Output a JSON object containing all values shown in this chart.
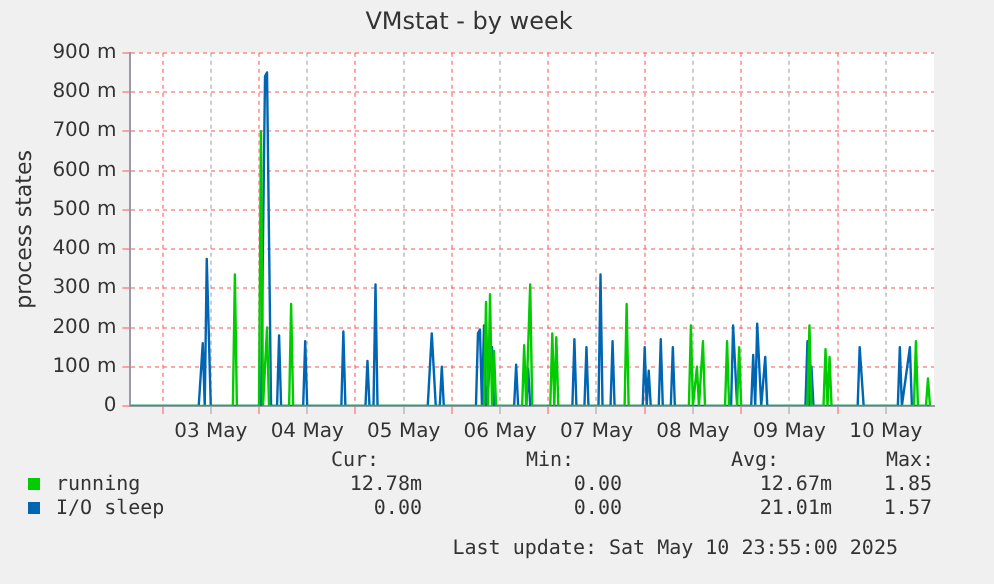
{
  "chart_data": {
    "type": "line",
    "title": "VMstat - by week",
    "ylabel": "process states",
    "xlim": [
      "2025-05-02T16:00",
      "2025-05-11T00:00"
    ],
    "xticks": [
      {
        "value": "2025-05-03T00:00",
        "label": null
      },
      {
        "value": "2025-05-03T12:00",
        "label": "03 May"
      },
      {
        "value": "2025-05-04T00:00",
        "label": null
      },
      {
        "value": "2025-05-04T12:00",
        "label": "04 May"
      },
      {
        "value": "2025-05-05T00:00",
        "label": null
      },
      {
        "value": "2025-05-05T12:00",
        "label": "05 May"
      },
      {
        "value": "2025-05-06T00:00",
        "label": null
      },
      {
        "value": "2025-05-06T12:00",
        "label": "06 May"
      },
      {
        "value": "2025-05-07T00:00",
        "label": null
      },
      {
        "value": "2025-05-07T12:00",
        "label": "07 May"
      },
      {
        "value": "2025-05-08T00:00",
        "label": null
      },
      {
        "value": "2025-05-08T12:00",
        "label": "08 May"
      },
      {
        "value": "2025-05-09T00:00",
        "label": null
      },
      {
        "value": "2025-05-09T12:00",
        "label": "09 May"
      },
      {
        "value": "2025-05-10T00:00",
        "label": null
      },
      {
        "value": "2025-05-10T12:00",
        "label": "10 May"
      }
    ],
    "ylim": [
      0,
      900
    ],
    "yticks": [
      0,
      {
        "value": 100,
        "label": "100 m"
      },
      {
        "value": 200,
        "label": "200 m"
      },
      {
        "value": 300,
        "label": "300 m"
      },
      {
        "value": 400,
        "label": "400 m"
      },
      {
        "value": 500,
        "label": "500 m"
      },
      {
        "value": 600,
        "label": "600 m"
      },
      {
        "value": 700,
        "label": "700 m"
      },
      {
        "value": 800,
        "label": "800 m"
      },
      {
        "value": 900,
        "label": "900 m"
      }
    ],
    "grid": true,
    "legend": "bottom",
    "marker": "none",
    "line_style": "solid",
    "series": [
      {
        "name": "running",
        "color": "#00cc00",
        "x": [
          "2025-05-02T16:00",
          "2025-05-03T17:30",
          "2025-05-03T18:00",
          "2025-05-03T18:30",
          "2025-05-04T00:00",
          "2025-05-04T00:30",
          "2025-05-04T01:00",
          "2025-05-04T02:00",
          "2025-05-04T02:30",
          "2025-05-04T07:30",
          "2025-05-04T08:00",
          "2025-05-04T08:30",
          "2025-05-06T08:00",
          "2025-05-06T08:30",
          "2025-05-06T09:00",
          "2025-05-06T09:30",
          "2025-05-06T10:00",
          "2025-05-06T10:30",
          "2025-05-06T11:00",
          "2025-05-06T17:30",
          "2025-05-06T18:00",
          "2025-05-06T18:30",
          "2025-05-06T19:30",
          "2025-05-06T20:00",
          "2025-05-07T00:30",
          "2025-05-07T01:00",
          "2025-05-07T01:30",
          "2025-05-07T02:00",
          "2025-05-07T02:30",
          "2025-05-07T19:00",
          "2025-05-07T19:30",
          "2025-05-07T20:00",
          "2025-05-08T11:00",
          "2025-05-08T11:30",
          "2025-05-08T12:00",
          "2025-05-08T13:00",
          "2025-05-08T13:30",
          "2025-05-08T14:30",
          "2025-05-08T15:00",
          "2025-05-08T20:00",
          "2025-05-08T20:30",
          "2025-05-08T21:00",
          "2025-05-08T23:00",
          "2025-05-08T23:30",
          "2025-05-09T00:00",
          "2025-05-09T16:30",
          "2025-05-09T17:00",
          "2025-05-09T17:30",
          "2025-05-09T20:30",
          "2025-05-09T21:00",
          "2025-05-09T21:30",
          "2025-05-09T22:00",
          "2025-05-09T22:30",
          "2025-05-10T19:00",
          "2025-05-10T19:30",
          "2025-05-10T20:00",
          "2025-05-10T22:00",
          "2025-05-10T22:30",
          "2025-05-10T23:00"
        ],
        "values": [
          0,
          0,
          335,
          0,
          0,
          700,
          0,
          200,
          0,
          0,
          260,
          0,
          0,
          265,
          0,
          285,
          0,
          140,
          0,
          0,
          155,
          0,
          310,
          0,
          0,
          185,
          0,
          175,
          0,
          0,
          260,
          0,
          0,
          205,
          0,
          100,
          0,
          165,
          0,
          0,
          165,
          0,
          0,
          150,
          0,
          0,
          205,
          0,
          0,
          145,
          0,
          125,
          0,
          0,
          165,
          0,
          0,
          70,
          0
        ]
      },
      {
        "name": "I/O sleep",
        "color": "#0066b3",
        "x": [
          "2025-05-02T16:00",
          "2025-05-03T09:00",
          "2025-05-03T10:00",
          "2025-05-03T10:30",
          "2025-05-03T11:00",
          "2025-05-03T12:00",
          "2025-05-04T00:30",
          "2025-05-04T01:30",
          "2025-05-04T02:00",
          "2025-05-04T03:00",
          "2025-05-04T04:30",
          "2025-05-04T05:00",
          "2025-05-04T05:30",
          "2025-05-04T11:00",
          "2025-05-04T11:30",
          "2025-05-04T12:00",
          "2025-05-04T20:30",
          "2025-05-04T21:00",
          "2025-05-04T21:30",
          "2025-05-05T02:30",
          "2025-05-05T03:00",
          "2025-05-05T03:30",
          "2025-05-05T04:30",
          "2025-05-05T05:00",
          "2025-05-05T05:30",
          "2025-05-05T18:00",
          "2025-05-05T19:00",
          "2025-05-05T20:00",
          "2025-05-05T21:00",
          "2025-05-05T21:30",
          "2025-05-05T22:00",
          "2025-05-06T06:00",
          "2025-05-06T06:30",
          "2025-05-06T07:00",
          "2025-05-06T07:30",
          "2025-05-06T08:00",
          "2025-05-06T08:30",
          "2025-05-06T10:00",
          "2025-05-06T10:30",
          "2025-05-06T15:30",
          "2025-05-06T16:00",
          "2025-05-06T16:30",
          "2025-05-06T18:30",
          "2025-05-06T19:00",
          "2025-05-06T19:30",
          "2025-05-07T06:00",
          "2025-05-07T06:30",
          "2025-05-07T07:00",
          "2025-05-07T09:00",
          "2025-05-07T09:30",
          "2025-05-07T10:00",
          "2025-05-07T12:30",
          "2025-05-07T13:00",
          "2025-05-07T13:30",
          "2025-05-07T15:30",
          "2025-05-07T16:00",
          "2025-05-07T16:30",
          "2025-05-07T23:30",
          "2025-05-08T00:00",
          "2025-05-08T00:30",
          "2025-05-08T01:00",
          "2025-05-08T01:30",
          "2025-05-08T03:30",
          "2025-05-08T04:00",
          "2025-05-08T04:30",
          "2025-05-08T06:30",
          "2025-05-08T07:00",
          "2025-05-08T07:30",
          "2025-05-08T21:30",
          "2025-05-08T22:00",
          "2025-05-08T23:00",
          "2025-05-09T02:30",
          "2025-05-09T03:00",
          "2025-05-09T03:30",
          "2025-05-09T04:00",
          "2025-05-09T05:00",
          "2025-05-09T06:00",
          "2025-05-09T06:30",
          "2025-05-09T16:00",
          "2025-05-09T16:30",
          "2025-05-09T17:00",
          "2025-05-09T17:30",
          "2025-05-09T18:00",
          "2025-05-10T05:00",
          "2025-05-10T05:30",
          "2025-05-10T06:30",
          "2025-05-10T15:00",
          "2025-05-10T15:30",
          "2025-05-10T16:00",
          "2025-05-10T18:00",
          "2025-05-10T18:30",
          "2025-05-10T23:00"
        ],
        "values": [
          0,
          0,
          160,
          0,
          375,
          0,
          0,
          840,
          850,
          0,
          0,
          180,
          0,
          0,
          165,
          0,
          0,
          190,
          0,
          0,
          115,
          0,
          0,
          310,
          0,
          0,
          185,
          0,
          0,
          100,
          0,
          0,
          185,
          195,
          0,
          205,
          0,
          150,
          0,
          0,
          105,
          0,
          0,
          95,
          0,
          0,
          170,
          0,
          0,
          150,
          0,
          0,
          335,
          0,
          0,
          165,
          0,
          0,
          150,
          0,
          90,
          0,
          0,
          170,
          0,
          0,
          150,
          0,
          0,
          205,
          0,
          0,
          130,
          0,
          210,
          0,
          125,
          0,
          0,
          165,
          0,
          100,
          0,
          0,
          150,
          0,
          0,
          150,
          0,
          150,
          0,
          0
        ]
      }
    ],
    "annotations": [
      "Cur:",
      "Min:",
      "Avg:",
      "Max:",
      "12.78m",
      "0.00",
      "12.67m",
      "1.85",
      "0.00",
      "0.00",
      "21.01m",
      "1.57",
      "Last update: Sat May 10 23:55:00 2025"
    ]
  }
}
